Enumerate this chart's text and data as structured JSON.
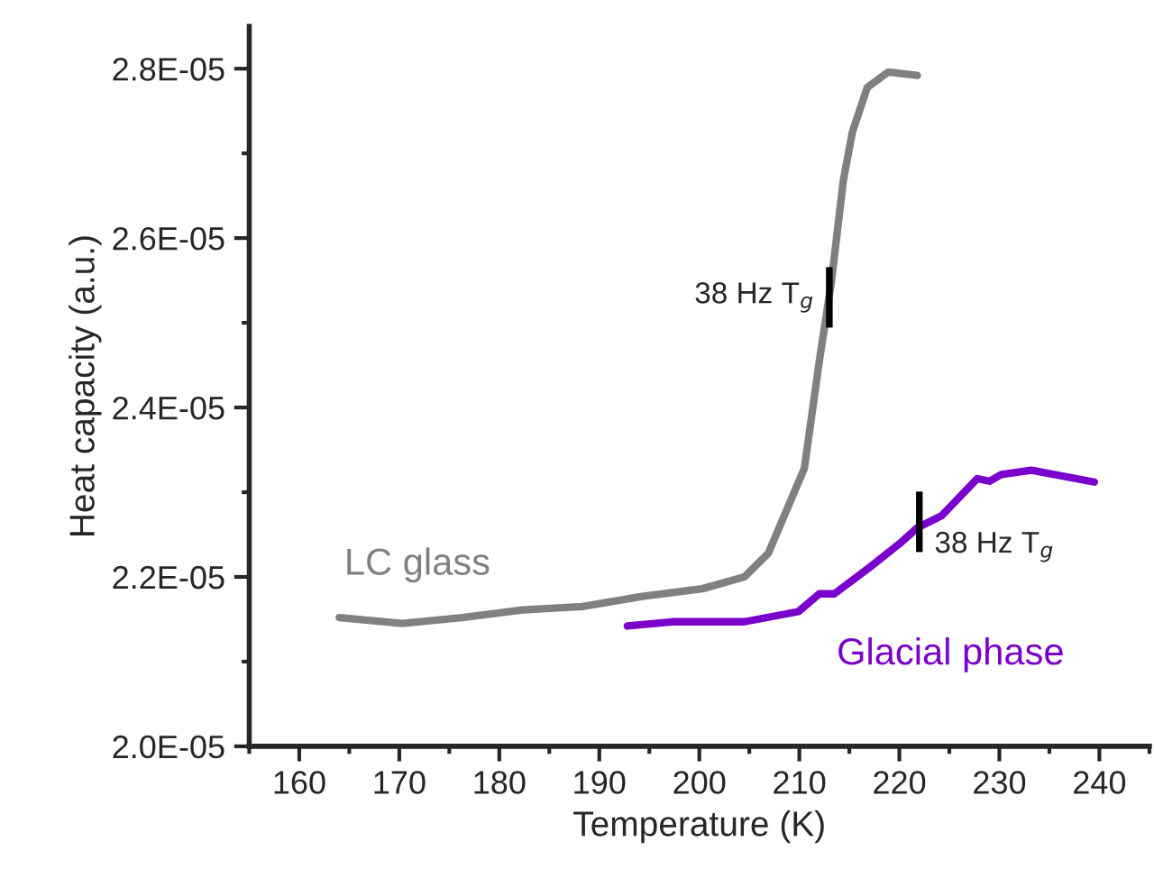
{
  "chart_data": {
    "type": "line",
    "xlabel": "Temperature (K)",
    "ylabel": "Heat capacity (a.u.)",
    "xlim": [
      155,
      245
    ],
    "xticks": [
      160,
      170,
      180,
      190,
      200,
      210,
      220,
      230,
      240
    ],
    "ylim": [
      2e-05,
      2.85e-05
    ],
    "yticks": [
      {
        "value": 2e-05,
        "label": "2.0E-05"
      },
      {
        "value": 2.2e-05,
        "label": "2.2E-05"
      },
      {
        "value": 2.4e-05,
        "label": "2.4E-05"
      },
      {
        "value": 2.6e-05,
        "label": "2.6E-05"
      },
      {
        "value": 2.8e-05,
        "label": "2.8E-05"
      }
    ],
    "grid": false,
    "legend": false,
    "line_style": "solid",
    "marker": "none",
    "series": [
      {
        "name": "LC glass",
        "color": "#808080",
        "x": [
          164.0,
          170.3,
          176.3,
          182.3,
          188.3,
          194.3,
          200.3,
          204.5,
          206.9,
          210.5,
          212.0,
          213.2,
          214.4,
          215.3,
          216.8,
          218.9,
          221.8
        ],
        "values": [
          2.152e-05,
          2.145e-05,
          2.152e-05,
          2.161e-05,
          2.165e-05,
          2.177e-05,
          2.186e-05,
          2.2e-05,
          2.228e-05,
          2.328e-05,
          2.455e-05,
          2.548e-05,
          2.668e-05,
          2.725e-05,
          2.778e-05,
          2.796e-05,
          2.792e-05
        ]
      },
      {
        "name": "Glacial phase",
        "color": "#7a00cc",
        "x": [
          192.8,
          197.3,
          204.5,
          209.9,
          212.0,
          213.5,
          217.0,
          220.0,
          221.8,
          224.2,
          227.8,
          229.0,
          230.2,
          233.2,
          239.5
        ],
        "values": [
          2.142e-05,
          2.147e-05,
          2.147e-05,
          2.159e-05,
          2.18e-05,
          2.18e-05,
          2.211e-05,
          2.239e-05,
          2.258e-05,
          2.272e-05,
          2.316e-05,
          2.313e-05,
          2.321e-05,
          2.326e-05,
          2.312e-05
        ]
      }
    ],
    "annotations": [
      {
        "text": "38 Hz T$_{g}$",
        "x": 213.0,
        "y": 2.53e-05
      },
      {
        "text": "38 Hz T$_{g}$",
        "x": 222.0,
        "y": 2.265e-05
      }
    ]
  }
}
